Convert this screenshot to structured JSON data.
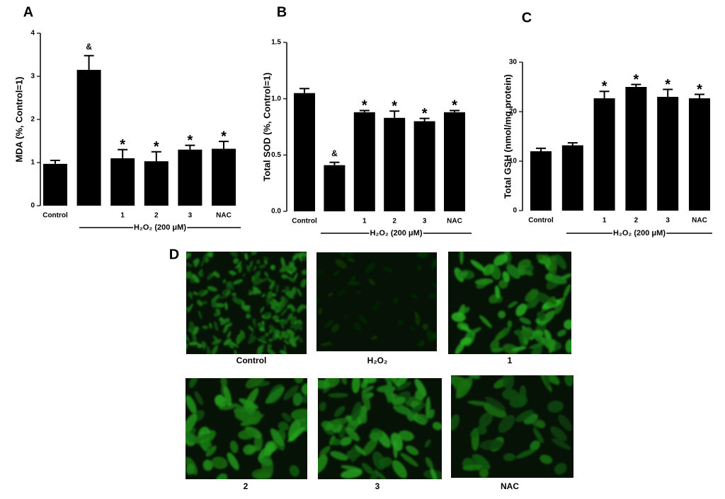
{
  "chart_data": [
    {
      "type": "bar",
      "panel": "A",
      "ylabel": "MDA (%, Control=1)",
      "categories": [
        "Control",
        null,
        "1",
        "2",
        "3",
        "NAC"
      ],
      "values": [
        0.97,
        3.15,
        1.1,
        1.03,
        1.3,
        1.32
      ],
      "errors": [
        0.08,
        0.33,
        0.2,
        0.22,
        0.1,
        0.17
      ],
      "annotations": [
        null,
        "&",
        "*",
        "*",
        "*",
        "*"
      ],
      "group_label": "H₂O₂ (200 μM)",
      "color": "#000000",
      "ylim": [
        0,
        4
      ],
      "yticks": [
        0,
        1,
        2,
        3,
        4
      ]
    },
    {
      "type": "bar",
      "panel": "B",
      "ylabel": "Total SOD (%, Control=1)",
      "categories": [
        "Control",
        null,
        "1",
        "2",
        "3",
        "NAC"
      ],
      "values": [
        1.05,
        0.41,
        0.88,
        0.83,
        0.8,
        0.88
      ],
      "errors": [
        0.04,
        0.025,
        0.015,
        0.06,
        0.025,
        0.015
      ],
      "annotations": [
        null,
        "&",
        "*",
        "*",
        "*",
        "*"
      ],
      "group_label": "H₂O₂ (200 μM)",
      "color": "#000000",
      "ylim": [
        0,
        1.5
      ],
      "yticks": [
        {
          "value": 0,
          "label": "0.0"
        },
        0.5,
        {
          "value": 1,
          "label": "1.0"
        },
        1.5
      ]
    },
    {
      "type": "bar",
      "panel": "C",
      "ylabel": "Total GSH (nmol/mg protein)",
      "categories": [
        "Control",
        null,
        "1",
        "2",
        "3",
        "NAC"
      ],
      "values": [
        12,
        13.2,
        22.7,
        25,
        23,
        22.7
      ],
      "errors": [
        0.6,
        0.5,
        1.4,
        0.5,
        1.5,
        0.8
      ],
      "annotations": [
        null,
        null,
        "*",
        "*",
        "*",
        "*"
      ],
      "group_label": "H₂O₂ (200 μM)",
      "color": "#000000",
      "ylim": [
        0,
        30
      ],
      "yticks": [
        0,
        10,
        20,
        30
      ]
    }
  ],
  "panel_d": {
    "label": "D",
    "images": [
      "Control",
      "H₂O₂",
      "1",
      "2",
      "3",
      "NAC"
    ]
  }
}
